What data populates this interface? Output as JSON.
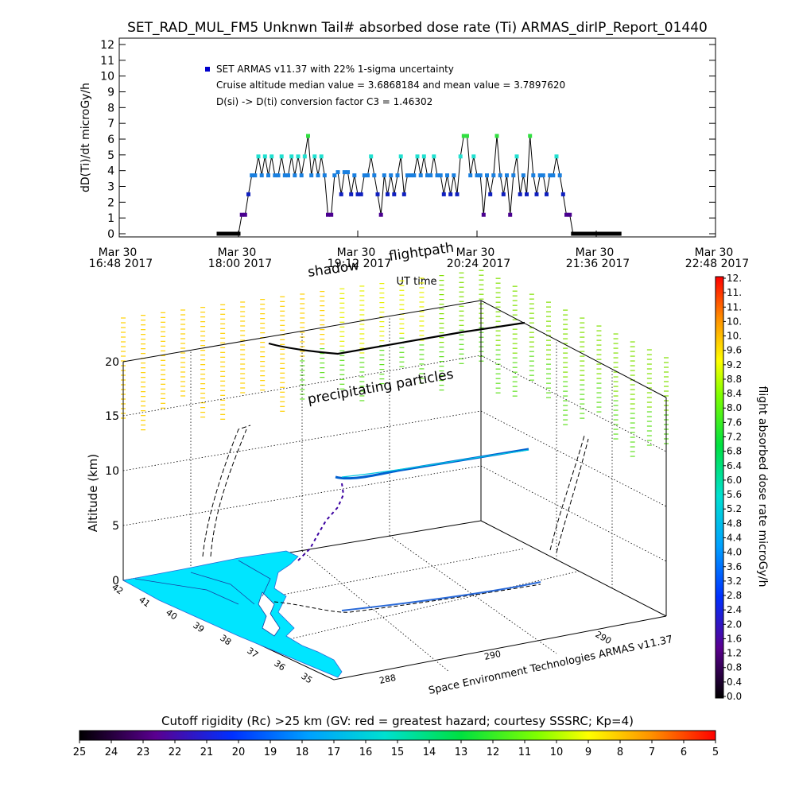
{
  "title": "SET_RAD_MUL_FM5 Unknwn Tail#  absorbed dose rate (Ti) ARMAS_dirIP_Report_01440",
  "colors": {
    "marker_blue": "#0000cc",
    "line": "#000000",
    "land_cyan": "#00e5ff",
    "flightpath": "#000000"
  },
  "chart_data": [
    {
      "type": "line",
      "ylabel": "dD(Ti)/dt microGy/h",
      "xlabel": "UT time",
      "ylim": [
        0,
        12
      ],
      "yticks": [
        "0",
        "1",
        "2",
        "3",
        "4",
        "5",
        "6",
        "7",
        "8",
        "9",
        "10",
        "11",
        "12"
      ],
      "xlim_minutes": [
        0,
        360
      ],
      "xticks": [
        {
          "line1": "Mar 30",
          "line2": "16:48 2017",
          "t": 0
        },
        {
          "line1": "Mar 30",
          "line2": "18:00 2017",
          "t": 72
        },
        {
          "line1": "Mar 30",
          "line2": "19:12 2017",
          "t": 144
        },
        {
          "line1": "Mar 30",
          "line2": "20:24 2017",
          "t": 216
        },
        {
          "line1": "Mar 30",
          "line2": "21:36 2017",
          "t": 288
        },
        {
          "line1": "Mar 30",
          "line2": "22:48 2017",
          "t": 360
        }
      ],
      "legend": {
        "series": "SET ARMAS v11.37 with 22% 1-sigma uncertainty",
        "note1": "Cruise altitude median value = 3.6868184 and mean value = 3.7897620",
        "note2": "D(si) -> D(ti) conversion factor C3 = 1.46302"
      },
      "x_minutes": [
        60,
        62,
        64,
        66,
        68,
        70,
        72,
        74,
        76,
        78,
        80,
        82,
        84,
        86,
        88,
        90,
        92,
        94,
        96,
        98,
        100,
        102,
        104,
        106,
        108,
        110,
        112,
        114,
        116,
        118,
        120,
        122,
        124,
        126,
        128,
        130,
        132,
        134,
        136,
        138,
        140,
        142,
        144,
        146,
        148,
        150,
        152,
        154,
        156,
        158,
        160,
        162,
        164,
        166,
        168,
        170,
        172,
        174,
        176,
        178,
        180,
        182,
        184,
        186,
        188,
        190,
        192,
        194,
        196,
        198,
        200,
        202,
        204,
        206,
        208,
        210,
        212,
        214,
        216,
        218,
        220,
        222,
        224,
        226,
        228,
        230,
        232,
        234,
        236,
        238,
        240,
        242,
        244,
        246,
        248,
        250,
        252,
        254,
        256,
        258,
        260,
        262,
        264,
        266,
        268,
        270,
        272,
        274,
        276,
        278,
        280,
        282,
        284,
        286,
        288,
        290,
        292,
        294,
        296,
        298,
        300,
        302
      ],
      "values": [
        0,
        0,
        0,
        0,
        0,
        0,
        0,
        1.2,
        1.2,
        2.5,
        3.7,
        3.7,
        4.9,
        3.7,
        4.9,
        3.7,
        4.9,
        3.7,
        3.7,
        4.9,
        3.7,
        3.7,
        4.9,
        3.7,
        4.9,
        3.7,
        4.9,
        6.2,
        3.7,
        4.9,
        3.7,
        4.9,
        3.7,
        1.2,
        1.2,
        3.7,
        3.9,
        2.5,
        3.9,
        3.9,
        2.5,
        3.7,
        2.5,
        2.5,
        3.7,
        3.7,
        4.9,
        3.7,
        2.5,
        1.2,
        3.7,
        2.5,
        3.7,
        2.5,
        3.7,
        4.9,
        2.5,
        3.7,
        3.7,
        3.7,
        4.9,
        3.7,
        4.9,
        3.7,
        3.7,
        4.9,
        3.7,
        3.7,
        2.5,
        3.7,
        2.5,
        3.7,
        2.5,
        4.9,
        6.2,
        6.2,
        3.7,
        4.9,
        3.7,
        3.7,
        1.2,
        3.7,
        2.5,
        3.7,
        6.2,
        3.7,
        2.5,
        3.7,
        1.2,
        3.7,
        4.9,
        2.5,
        3.7,
        2.5,
        6.2,
        3.7,
        2.5,
        3.7,
        3.7,
        2.5,
        3.7,
        3.7,
        4.9,
        3.7,
        2.5,
        1.2,
        1.2,
        0,
        0,
        0,
        0,
        0,
        0,
        0,
        0,
        0,
        0,
        0,
        0,
        0,
        0,
        0
      ]
    },
    {
      "type": "scatter",
      "ylabel": "Altitude (km)",
      "zticks": [
        "0",
        "5",
        "10",
        "15",
        "20"
      ],
      "lat_ticks": [
        "42",
        "41",
        "40",
        "39",
        "38",
        "37",
        "36",
        "35"
      ],
      "lon_ticks_front": [
        "288",
        "290"
      ],
      "lon_tick_back": "290",
      "credit": "Space Environment Technologies ARMAS v11.37",
      "annotations": {
        "shadow": "shadow",
        "flightpath": "flightpath",
        "precipitating": "precipitating particles"
      }
    },
    {
      "type": "heatmap",
      "colorbar_vertical": {
        "label": "flight absorbed dose rate microGy/h",
        "ticks": [
          "0.0",
          "0.4",
          "0.8",
          "1.2",
          "1.6",
          "2.0",
          "2.4",
          "2.8",
          "3.2",
          "3.6",
          "4.0",
          "4.4",
          "4.8",
          "5.2",
          "5.6",
          "6.0",
          "6.4",
          "6.8",
          "7.2",
          "7.6",
          "8.0",
          "8.4",
          "8.8",
          "9.2",
          "9.6",
          "10.",
          "10.",
          "11.",
          "11.",
          "12."
        ]
      },
      "colorbar_horizontal": {
        "title": "Cutoff rigidity (Rc) >25 km (GV: red = greatest hazard; courtesy SSSRC; Kp=4)",
        "ticks": [
          "25",
          "24",
          "23",
          "22",
          "21",
          "20",
          "19",
          "18",
          "17",
          "16",
          "15",
          "14",
          "13",
          "12",
          "11",
          "10",
          "9",
          "8",
          "7",
          "6",
          "5"
        ]
      }
    }
  ]
}
